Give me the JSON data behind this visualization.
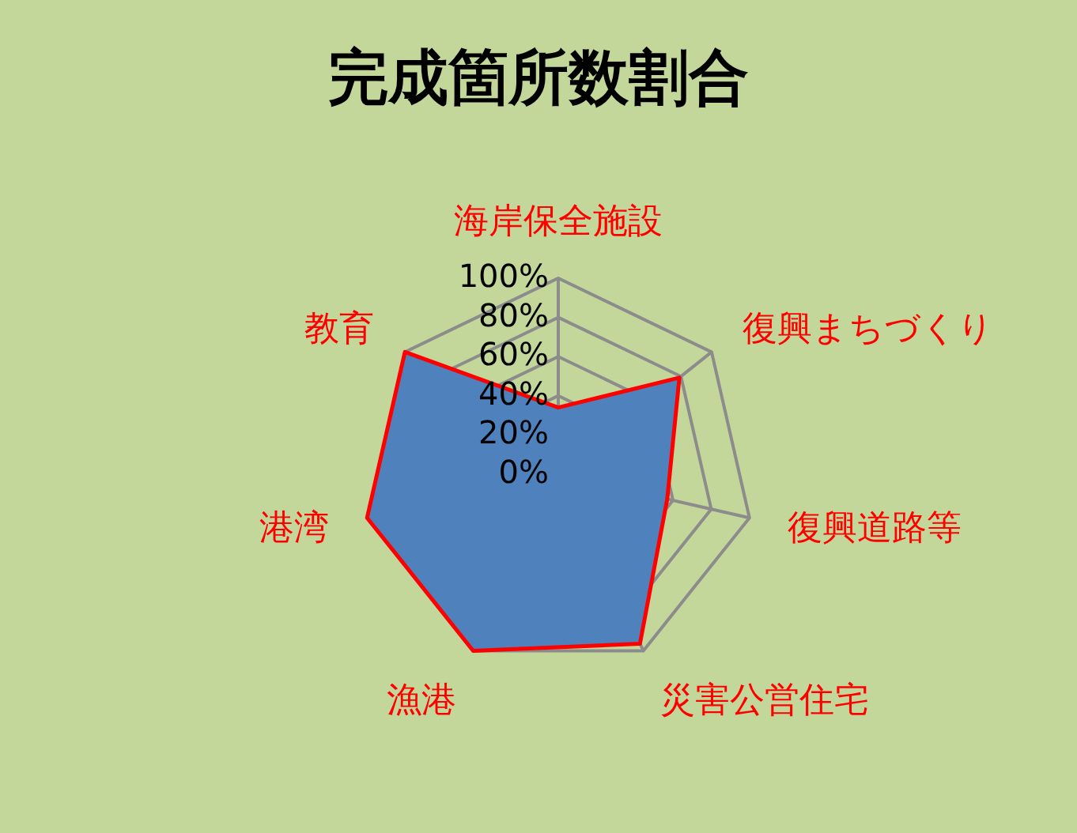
{
  "chart_data": {
    "type": "radar",
    "title": "完成箇所数割合",
    "categories": [
      "海岸保全施設",
      "復興まちづくり",
      "復興道路等",
      "災害公営住宅",
      "漁港",
      "港湾",
      "教育"
    ],
    "series": [
      {
        "color": "#4f81bd",
        "values": [
          34,
          79,
          57,
          96,
          100,
          100,
          100
        ]
      }
    ],
    "ylim": [
      0,
      100
    ],
    "yticks": [
      {
        "value": 0,
        "label": "0%"
      },
      {
        "value": 20,
        "label": "20%"
      },
      {
        "value": 40,
        "label": "40%"
      },
      {
        "value": 60,
        "label": "60%"
      },
      {
        "value": 80,
        "label": "80%"
      },
      {
        "value": 100,
        "label": "100%"
      }
    ],
    "grid": true
  }
}
